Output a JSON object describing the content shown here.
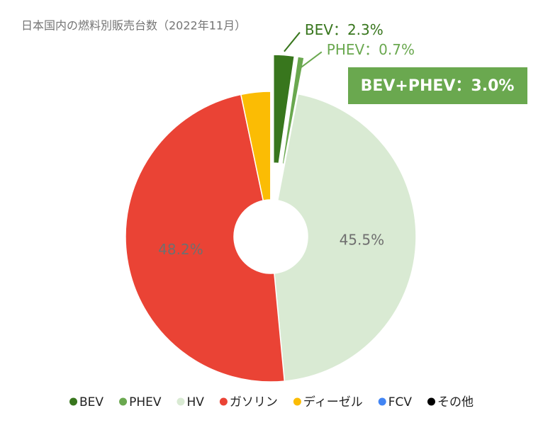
{
  "chart_data": {
    "type": "donut",
    "title": "日本国内の燃料別販売台数（2022年11月）",
    "categories": [
      "BEV",
      "PHEV",
      "HV",
      "ガソリン",
      "ディーゼル",
      "FCV",
      "その他"
    ],
    "values": [
      2.3,
      0.7,
      45.5,
      48.2,
      3.3,
      0,
      0
    ],
    "value_labels": [
      "BEV：2.3%",
      "PHEV：0.7%",
      "45.5%",
      "48.2%",
      null,
      null,
      null
    ],
    "colors": [
      "#38761d",
      "#6aa84f",
      "#d9ead3",
      "#ea4335",
      "#fbbc04",
      "#4285f4",
      "#000000"
    ],
    "annotation": "BEV+PHEV：3.0%",
    "legend": "bottom"
  }
}
